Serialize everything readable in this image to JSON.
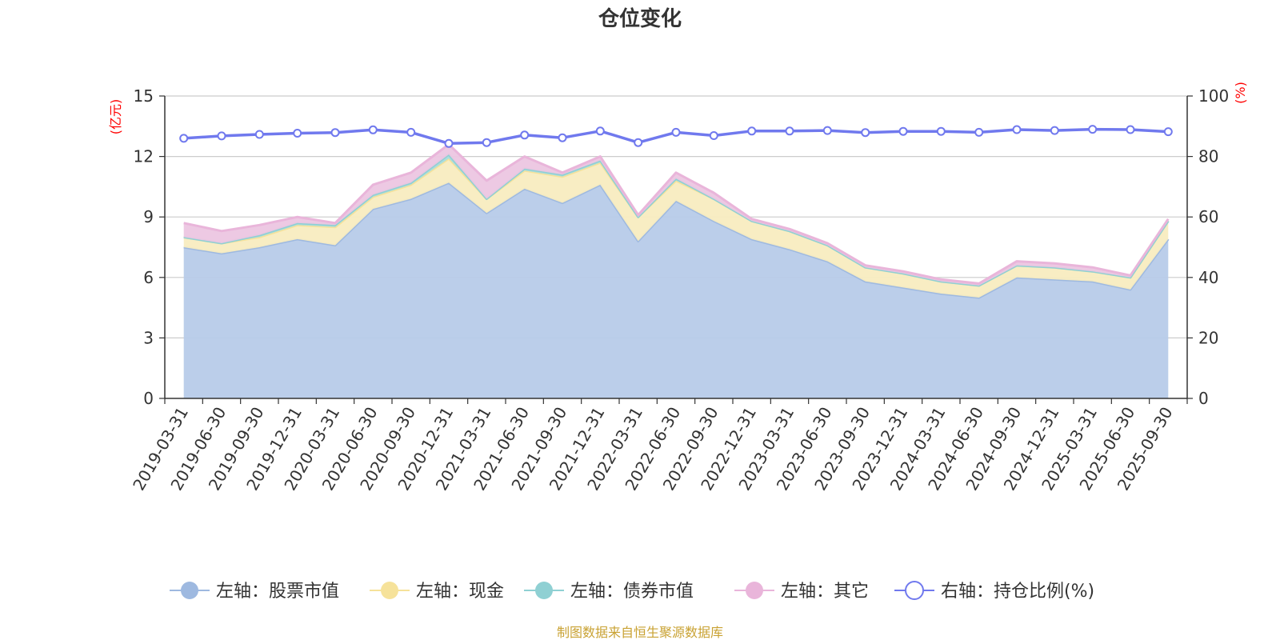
{
  "chart_data": {
    "type": "area",
    "title": "仓位变化",
    "source_note": "制图数据来自恒生聚源数据库",
    "left_axis": {
      "unit_label": "(亿元)",
      "min": 0,
      "max": 15,
      "ticks": [
        "0",
        "3",
        "6",
        "9",
        "12",
        "15"
      ]
    },
    "right_axis": {
      "unit_label": "(%)",
      "min": 0,
      "max": 100,
      "ticks": [
        "0",
        "20",
        "40",
        "60",
        "80",
        "100"
      ]
    },
    "categories": [
      "2019-03-31",
      "2019-06-30",
      "2019-09-30",
      "2019-12-31",
      "2020-03-31",
      "2020-06-30",
      "2020-09-30",
      "2020-12-31",
      "2021-03-31",
      "2021-06-30",
      "2021-09-30",
      "2021-12-31",
      "2022-03-31",
      "2022-06-30",
      "2022-09-30",
      "2022-12-31",
      "2023-03-31",
      "2023-06-30",
      "2023-09-30",
      "2023-12-31",
      "2024-03-31",
      "2024-06-30",
      "2024-09-30",
      "2024-12-31",
      "2025-03-31",
      "2025-06-30",
      "2025-09-30"
    ],
    "series": [
      {
        "name": "左轴：股票市值",
        "axis": "left",
        "stack": true,
        "color": "#9eb9e0",
        "fill": "#b7cbe9",
        "values": [
          7.5,
          7.2,
          7.5,
          7.9,
          7.6,
          9.4,
          9.9,
          10.7,
          9.2,
          10.4,
          9.7,
          10.6,
          7.8,
          9.8,
          8.8,
          7.9,
          7.4,
          6.8,
          5.8,
          5.5,
          5.2,
          5.0,
          6.0,
          5.9,
          5.8,
          5.4,
          7.9
        ]
      },
      {
        "name": "左轴：现金",
        "axis": "left",
        "stack": true,
        "color": "#f6e29a",
        "fill": "#f8ecc0",
        "values": [
          0.5,
          0.5,
          0.5,
          0.7,
          0.9,
          0.6,
          0.7,
          1.2,
          0.7,
          0.9,
          1.3,
          1.1,
          1.2,
          1.0,
          1.1,
          0.9,
          0.9,
          0.8,
          0.7,
          0.7,
          0.6,
          0.6,
          0.6,
          0.6,
          0.5,
          0.6,
          0.9
        ]
      },
      {
        "name": "左轴：债券市值",
        "axis": "left",
        "stack": true,
        "color": "#8fd0d3",
        "fill": "#a8dcde",
        "values": [
          0,
          0,
          0.1,
          0.1,
          0.1,
          0.1,
          0.1,
          0.2,
          0,
          0.1,
          0.1,
          0.1,
          0,
          0.1,
          0,
          0,
          0,
          0,
          0,
          0,
          0,
          0,
          0,
          0,
          0,
          0,
          0
        ]
      },
      {
        "name": "左轴：其它",
        "axis": "left",
        "stack": true,
        "color": "#e9b5da",
        "fill": "#ecc6e2",
        "values": [
          0.7,
          0.6,
          0.5,
          0.3,
          0.1,
          0.5,
          0.5,
          0.5,
          0.9,
          0.6,
          0.1,
          0.2,
          0.1,
          0.3,
          0.3,
          0.1,
          0.1,
          0.1,
          0.1,
          0.1,
          0.1,
          0.1,
          0.2,
          0.2,
          0.2,
          0.1,
          0.1
        ]
      },
      {
        "name": "右轴：持仓比例(%)",
        "axis": "right",
        "stack": false,
        "color": "#7079ee",
        "values": [
          86.0,
          86.8,
          87.3,
          87.7,
          87.9,
          88.8,
          88.0,
          84.3,
          84.6,
          87.1,
          86.2,
          88.4,
          84.6,
          88.0,
          86.9,
          88.4,
          88.4,
          88.6,
          87.9,
          88.3,
          88.3,
          88.0,
          88.9,
          88.6,
          89.0,
          88.9,
          88.2
        ]
      }
    ]
  }
}
